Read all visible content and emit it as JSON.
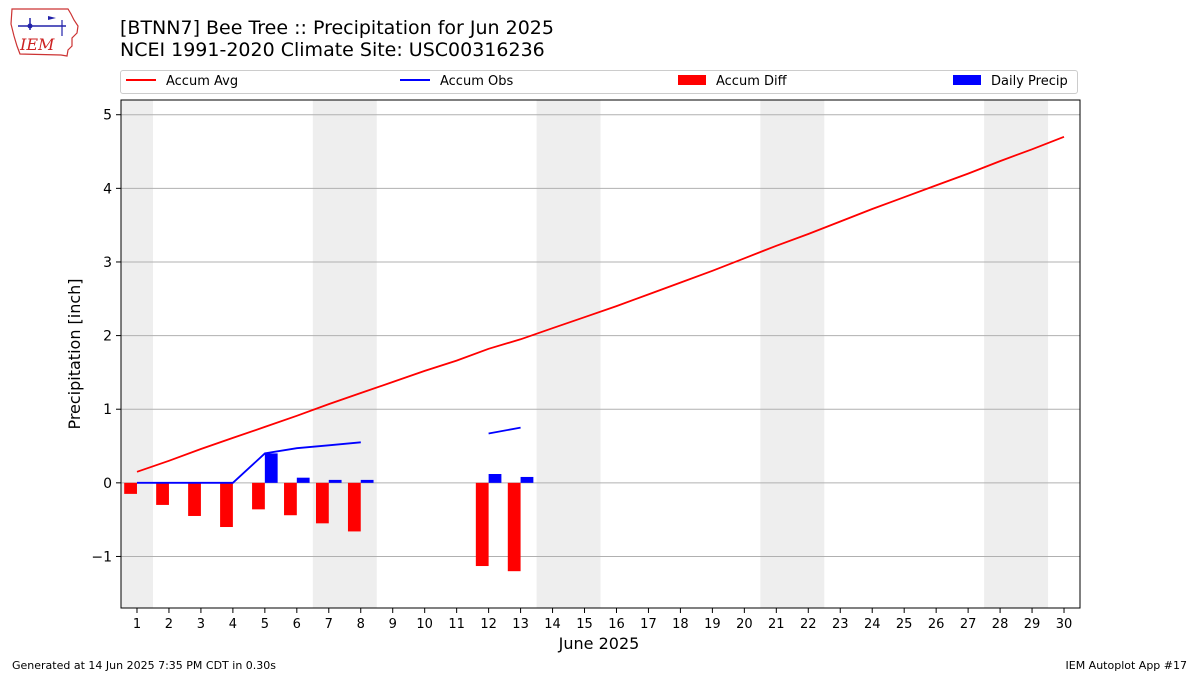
{
  "logo": {
    "text": "IEM",
    "icon": "iowa-state-logo"
  },
  "title_line1": "[BTNN7] Bee Tree :: Precipitation for Jun 2025",
  "title_line2": "NCEI 1991-2020 Climate Site: USC00316236",
  "legend": [
    {
      "label": "Accum Avg",
      "kind": "line",
      "color": "#ff0000"
    },
    {
      "label": "Accum Obs",
      "kind": "line",
      "color": "#0000ff"
    },
    {
      "label": "Accum Diff",
      "kind": "bar",
      "color": "#ff0000"
    },
    {
      "label": "Daily Precip",
      "kind": "bar",
      "color": "#0000ff"
    }
  ],
  "footer_left": "Generated at 14 Jun 2025 7:35 PM CDT in 0.30s",
  "footer_right": "IEM Autoplot App #17",
  "chart_data": {
    "type": "bar",
    "xlabel": "June 2025",
    "ylabel": "Precipitation [inch]",
    "xlim": [
      0.5,
      30.5
    ],
    "ylim": [
      -1.7,
      5.2
    ],
    "x_ticks": [
      1,
      2,
      3,
      4,
      5,
      6,
      7,
      8,
      9,
      10,
      11,
      12,
      13,
      14,
      15,
      16,
      17,
      18,
      19,
      20,
      21,
      22,
      23,
      24,
      25,
      26,
      27,
      28,
      29,
      30
    ],
    "y_ticks": [
      -1,
      0,
      1,
      2,
      3,
      4,
      5
    ],
    "y_tick_labels": [
      "−1",
      "0",
      "1",
      "2",
      "3",
      "4",
      "5"
    ],
    "grid": "horizontal",
    "legend_position": "top",
    "weekend_shading": [
      [
        0.5,
        1.5
      ],
      [
        6.5,
        8.5
      ],
      [
        13.5,
        15.5
      ],
      [
        20.5,
        22.5
      ],
      [
        27.5,
        29.5
      ]
    ],
    "shading_color": "#eeeeee",
    "series": [
      {
        "name": "Accum Avg",
        "kind": "line",
        "color": "#ff0000",
        "x": [
          1,
          2,
          3,
          4,
          5,
          6,
          7,
          8,
          9,
          10,
          11,
          12,
          13,
          14,
          15,
          16,
          17,
          18,
          19,
          20,
          21,
          22,
          23,
          24,
          25,
          26,
          27,
          28,
          29,
          30
        ],
        "values": [
          0.15,
          0.3,
          0.46,
          0.61,
          0.76,
          0.91,
          1.07,
          1.22,
          1.37,
          1.52,
          1.66,
          1.82,
          1.95,
          2.1,
          2.25,
          2.4,
          2.56,
          2.72,
          2.88,
          3.05,
          3.22,
          3.38,
          3.55,
          3.72,
          3.88,
          4.04,
          4.2,
          4.37,
          4.53,
          4.7
        ]
      },
      {
        "name": "Accum Obs",
        "kind": "line",
        "color": "#0000ff",
        "x": [
          1,
          2,
          3,
          4,
          5,
          6,
          7,
          8,
          null,
          12,
          13
        ],
        "values": [
          0,
          0,
          0,
          0,
          0.4,
          0.47,
          0.51,
          0.55,
          null,
          0.67,
          0.75
        ]
      },
      {
        "name": "Accum Diff",
        "kind": "bar",
        "color": "#ff0000",
        "x": [
          1,
          2,
          3,
          4,
          5,
          6,
          7,
          8,
          12,
          13
        ],
        "values": [
          -0.15,
          -0.3,
          -0.45,
          -0.6,
          -0.36,
          -0.44,
          -0.55,
          -0.66,
          -1.13,
          -1.2
        ]
      },
      {
        "name": "Daily Precip",
        "kind": "bar",
        "color": "#0000ff",
        "x": [
          1,
          2,
          3,
          4,
          5,
          6,
          7,
          8,
          12,
          13
        ],
        "values": [
          0,
          0,
          0,
          0,
          0.4,
          0.07,
          0.04,
          0.04,
          0.12,
          0.08
        ]
      }
    ]
  }
}
